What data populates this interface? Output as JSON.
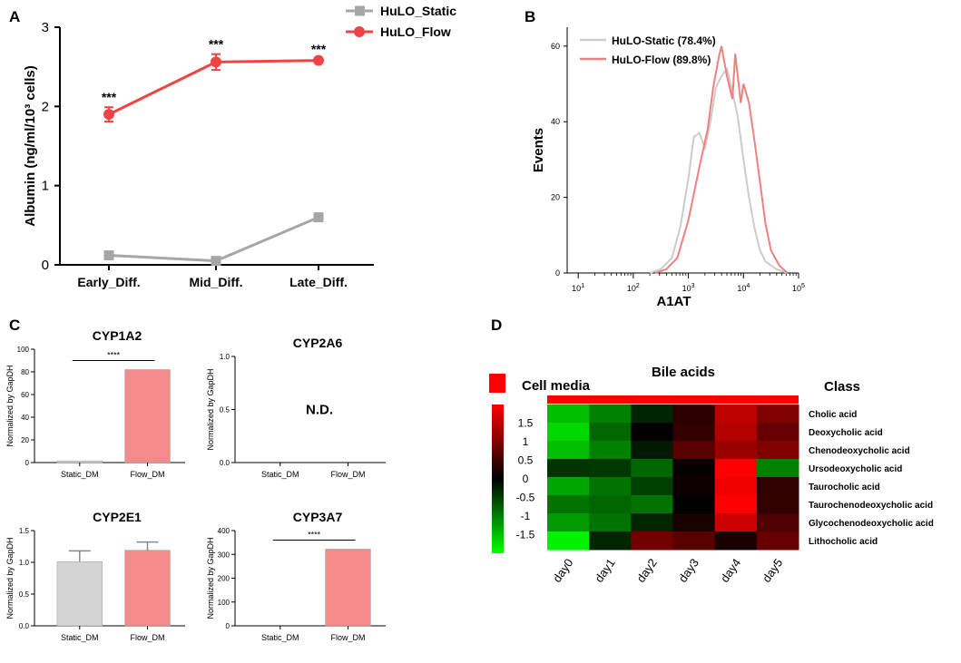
{
  "colors": {
    "static": "#a6a6a6",
    "flow": "#ee4444",
    "static_hist": "#cccccc",
    "flow_hist": "#f08080",
    "bar_static": "#d4d4d4",
    "bar_flow": "#f58a8a",
    "red": "#ff0000"
  },
  "panel_labels": {
    "A": "A",
    "B": "B",
    "C": "C",
    "D": "D"
  },
  "chart_data": [
    {
      "id": "A",
      "type": "line",
      "title": "",
      "categories": [
        "Early_Diff.",
        "Mid_Diff.",
        "Late_Diff."
      ],
      "xlabel": "",
      "ylabel": "Albumin (ng/ml/10³ cells)",
      "ylim": [
        0,
        3
      ],
      "yticks": [
        "0",
        "1",
        "2",
        "3"
      ],
      "series": [
        {
          "name": "HuLO_Static",
          "values": [
            0.12,
            0.05,
            0.6
          ],
          "errors": [
            0.03,
            0.02,
            0.04
          ]
        },
        {
          "name": "HuLO_Flow",
          "values": [
            1.9,
            2.56,
            2.58
          ],
          "errors": [
            0.09,
            0.1,
            0.02
          ]
        }
      ],
      "annotations": [
        "***",
        "***",
        "***"
      ]
    },
    {
      "id": "B",
      "type": "area",
      "title": "",
      "xlabel": "A1AT",
      "ylabel": "Events",
      "ylim": [
        0,
        65
      ],
      "yticks": [
        "0",
        "20",
        "40",
        "60"
      ],
      "xticks": [
        {
          "base": "10",
          "exp": "1"
        },
        {
          "base": "10",
          "exp": "2"
        },
        {
          "base": "10",
          "exp": "3"
        },
        {
          "base": "10",
          "exp": "4"
        },
        {
          "base": "10",
          "exp": "5"
        }
      ],
      "series": [
        {
          "name": "HuLO-Static (78.4%)",
          "x": [
            2.3,
            2.5,
            2.7,
            2.85,
            3.0,
            3.1,
            3.2,
            3.3,
            3.4,
            3.5,
            3.6,
            3.7,
            3.8,
            3.9,
            4.0,
            4.1,
            4.2,
            4.3,
            4.4,
            4.6,
            4.8
          ],
          "y": [
            0,
            1,
            4,
            12,
            25,
            36,
            37,
            33,
            40,
            49,
            52,
            54,
            48,
            41,
            30,
            20,
            12,
            6,
            3,
            1,
            0
          ]
        },
        {
          "name": "HuLO-Flow (89.8%)",
          "x": [
            2.4,
            2.6,
            2.8,
            3.0,
            3.2,
            3.35,
            3.45,
            3.55,
            3.6,
            3.7,
            3.8,
            3.85,
            3.95,
            4.0,
            4.1,
            4.2,
            4.3,
            4.4,
            4.5,
            4.65,
            4.8
          ],
          "y": [
            0,
            1,
            4,
            14,
            28,
            38,
            49,
            57,
            60,
            52,
            46,
            58,
            45,
            50,
            45,
            35,
            24,
            13,
            6,
            2,
            0
          ]
        }
      ]
    },
    {
      "id": "C1",
      "type": "bar",
      "title": "CYP1A2",
      "categories": [
        "Static_DM",
        "Flow_DM"
      ],
      "values": [
        1.5,
        82
      ],
      "errors": [
        0,
        0
      ],
      "ylabel": "Normalized by GapDH",
      "ylim": [
        0,
        100
      ],
      "yticks": [
        "0",
        "20",
        "40",
        "60",
        "80",
        "100"
      ],
      "significance": "****",
      "note": ""
    },
    {
      "id": "C2",
      "type": "bar",
      "title": "CYP2A6",
      "categories": [
        "Static_DM",
        "Flow_DM"
      ],
      "values": [
        0,
        0
      ],
      "errors": [
        0,
        0
      ],
      "ylabel": "Normalized by GapDH",
      "ylim": [
        0,
        1
      ],
      "yticks": [
        "0.0",
        "0.5",
        "1.0"
      ],
      "significance": "",
      "note": "N.D."
    },
    {
      "id": "C3",
      "type": "bar",
      "title": "CYP2E1",
      "categories": [
        "Static_DM",
        "Flow_DM"
      ],
      "values": [
        1.01,
        1.19
      ],
      "errors": [
        0.17,
        0.13
      ],
      "ylabel": "Normalized by GapDH",
      "ylim": [
        0,
        1.5
      ],
      "yticks": [
        "0.0",
        "0.5",
        "1.0",
        "1.5"
      ],
      "significance": "",
      "note": ""
    },
    {
      "id": "C4",
      "type": "bar",
      "title": "CYP3A7",
      "categories": [
        "Static_DM",
        "Flow_DM"
      ],
      "values": [
        0,
        322
      ],
      "errors": [
        0,
        0
      ],
      "ylabel": "Normalized by GapDH",
      "ylim": [
        0,
        400
      ],
      "yticks": [
        "0",
        "100",
        "200",
        "300",
        "400"
      ],
      "significance": "****",
      "note": ""
    },
    {
      "id": "D",
      "type": "heatmap",
      "title": "Bile acids",
      "group_label": "Cell media",
      "class_label": "Class",
      "columns": [
        "day0",
        "day1",
        "day2",
        "day3",
        "day4",
        "day5"
      ],
      "rows": [
        "Cholic acid",
        "Deoxycholic acid",
        "Chenodeoxycholic acid",
        "Ursodeoxycholic acid",
        "Taurocholic acid",
        "Taurochenodeoxycholic acid",
        "Glycochenodeoxycholic acid",
        "Lithocholic acid"
      ],
      "values": [
        [
          -1.5,
          -1.0,
          -0.3,
          0.35,
          1.5,
          1.0
        ],
        [
          -1.7,
          -0.8,
          0.0,
          0.4,
          1.4,
          0.8
        ],
        [
          -1.5,
          -1.0,
          -0.2,
          0.7,
          1.2,
          1.0
        ],
        [
          -0.4,
          -0.45,
          -0.8,
          0.05,
          2.0,
          -1.0
        ],
        [
          -1.3,
          -0.9,
          -0.5,
          0.1,
          1.9,
          0.4
        ],
        [
          -0.9,
          -0.8,
          -0.9,
          0.0,
          2.0,
          0.4
        ],
        [
          -1.2,
          -0.9,
          -0.3,
          0.2,
          1.6,
          0.6
        ],
        [
          -1.9,
          -0.3,
          0.9,
          0.7,
          0.2,
          0.8
        ]
      ],
      "vmin": -2,
      "vmax": 2,
      "colorbar_ticks": [
        "1.5",
        "1",
        "0.5",
        "0",
        "-0.5",
        "-1",
        "-1.5"
      ]
    }
  ]
}
